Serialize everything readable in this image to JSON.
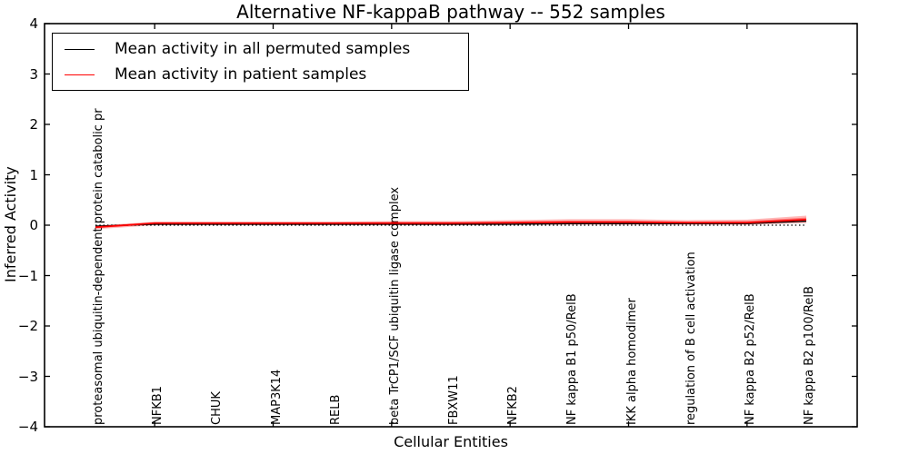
{
  "chart_data": {
    "type": "line",
    "title": "Alternative NF-kappaB pathway -- 552 samples",
    "xlabel": "Cellular Entities",
    "ylabel": "Inferred Activity",
    "ylim": [
      -4,
      4
    ],
    "yticks": [
      4,
      3,
      2,
      1,
      0,
      -1,
      -2,
      -3,
      -4
    ],
    "ytick_labels": [
      "4",
      "3",
      "2",
      "1",
      "0",
      "−1",
      "−2",
      "−3",
      "−4"
    ],
    "xtick_category_indexes": [
      1,
      3,
      5,
      7,
      9,
      11
    ],
    "grid": false,
    "legend_position": "upper left",
    "categories": [
      "proteasomal ubiquitin-dependent protein catabolic pr",
      "NFKB1",
      "CHUK",
      "MAP3K14",
      "RELB",
      "beta TrCP1/SCF ubiquitin ligase complex",
      "FBXW11",
      "NFKB2",
      "NF kappa B1 p50/RelB",
      "IKK alpha homodimer",
      "regulation of B cell activation",
      "NF kappa B2 p52/RelB",
      "NF kappa B2 p100/RelB"
    ],
    "zero_line": {
      "value": 0,
      "style": "dotted",
      "color": "#000000"
    },
    "series": [
      {
        "name": "Mean activity in all permuted samples",
        "color": "#000000",
        "values": [
          -0.02,
          0.02,
          0.02,
          0.02,
          0.02,
          0.02,
          0.02,
          0.02,
          0.03,
          0.03,
          0.03,
          0.03,
          0.08
        ]
      },
      {
        "name": "Mean activity in patient samples",
        "color": "#ff0000",
        "values": [
          -0.04,
          0.04,
          0.04,
          0.04,
          0.04,
          0.04,
          0.04,
          0.05,
          0.06,
          0.06,
          0.05,
          0.05,
          0.11
        ],
        "band_color": "#ff0000",
        "band_inner_upper": [
          -0.02,
          0.055,
          0.055,
          0.055,
          0.055,
          0.06,
          0.06,
          0.07,
          0.09,
          0.09,
          0.07,
          0.08,
          0.15
        ],
        "band_inner_lower": [
          -0.06,
          0.02,
          0.02,
          0.02,
          0.02,
          0.02,
          0.02,
          0.03,
          0.03,
          0.03,
          0.03,
          0.03,
          0.07
        ],
        "band_outer_upper": [
          -0.01,
          0.07,
          0.07,
          0.07,
          0.07,
          0.08,
          0.08,
          0.1,
          0.12,
          0.12,
          0.1,
          0.11,
          0.19
        ],
        "band_outer_lower": [
          -0.08,
          0.0,
          0.0,
          0.0,
          0.0,
          0.0,
          0.0,
          0.01,
          0.01,
          0.01,
          0.01,
          0.01,
          0.04
        ]
      }
    ]
  }
}
